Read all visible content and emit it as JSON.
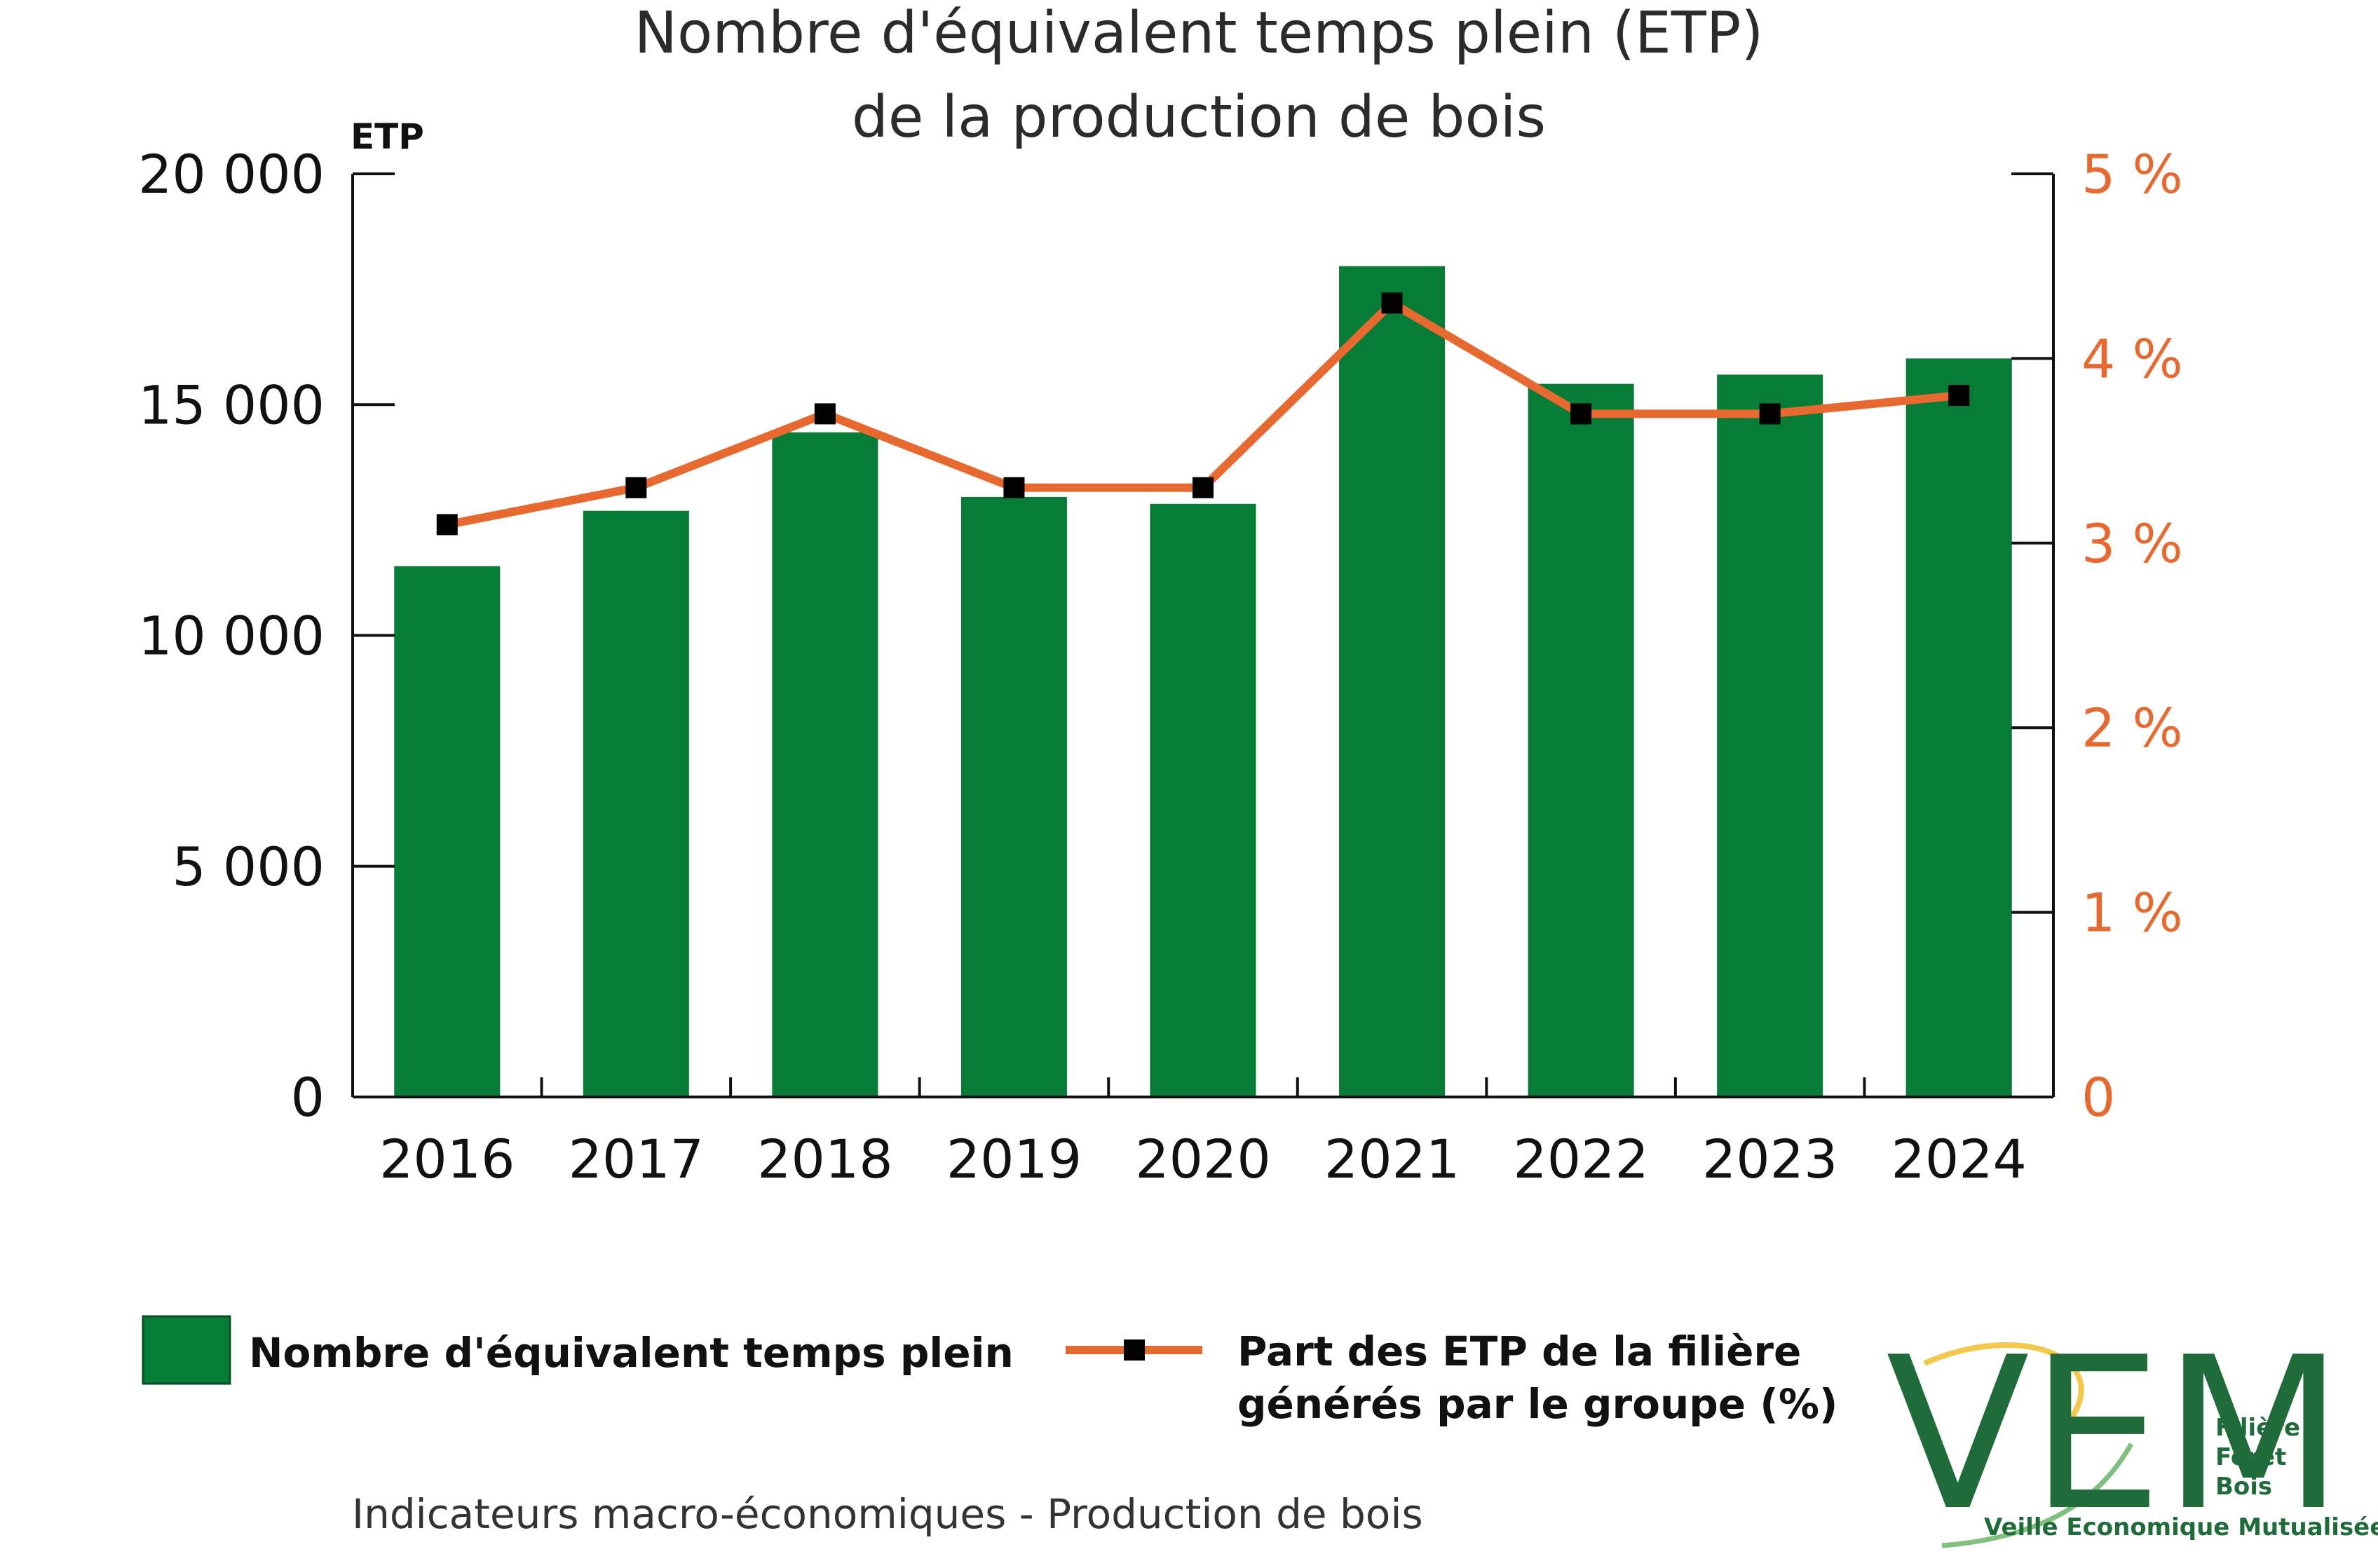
{
  "chart_data": {
    "type": "bar",
    "title_lines": [
      "Nombre d'équivalent temps plein (ETP)",
      "de la production de bois"
    ],
    "y_left_unit": "ETP",
    "categories": [
      "2016",
      "2017",
      "2018",
      "2019",
      "2020",
      "2021",
      "2022",
      "2023",
      "2024"
    ],
    "series": [
      {
        "name": "Nombre d'équivalent temps plein",
        "type": "bar",
        "axis": "left",
        "color": "#077c37",
        "values": [
          11500,
          12700,
          14400,
          13000,
          12850,
          18000,
          15450,
          15650,
          16000
        ]
      },
      {
        "name_lines": [
          "Part des ETP de la filière",
          "générés par le groupe (%)"
        ],
        "type": "line",
        "axis": "right",
        "color": "#e8692f",
        "marker_color": "#000000",
        "values": [
          3.1,
          3.3,
          3.7,
          3.3,
          3.3,
          4.3,
          3.7,
          3.7,
          3.8
        ]
      }
    ],
    "y_left": {
      "min": 0,
      "max": 20000,
      "ticks": [
        0,
        5000,
        10000,
        15000,
        20000
      ],
      "tick_labels": [
        "0",
        "5 000",
        "10 000",
        "15 000",
        "20 000"
      ]
    },
    "y_right": {
      "min": 0,
      "max": 5,
      "ticks": [
        0,
        1,
        2,
        3,
        4,
        5
      ],
      "tick_labels": [
        "0",
        "1 %",
        "2 %",
        "3 %",
        "4 %",
        "5 %"
      ]
    },
    "grid": false,
    "legend_position": "bottom"
  },
  "footer": "Indicateurs macro-économiques - Production de bois",
  "logo": {
    "letters": "VEM",
    "side_lines": [
      "Filière",
      "Forêt",
      "Bois"
    ],
    "tagline": "Veille Economique Mutualisée",
    "color": "#1f6b3a",
    "swoosh_color": "#f2c94c"
  }
}
